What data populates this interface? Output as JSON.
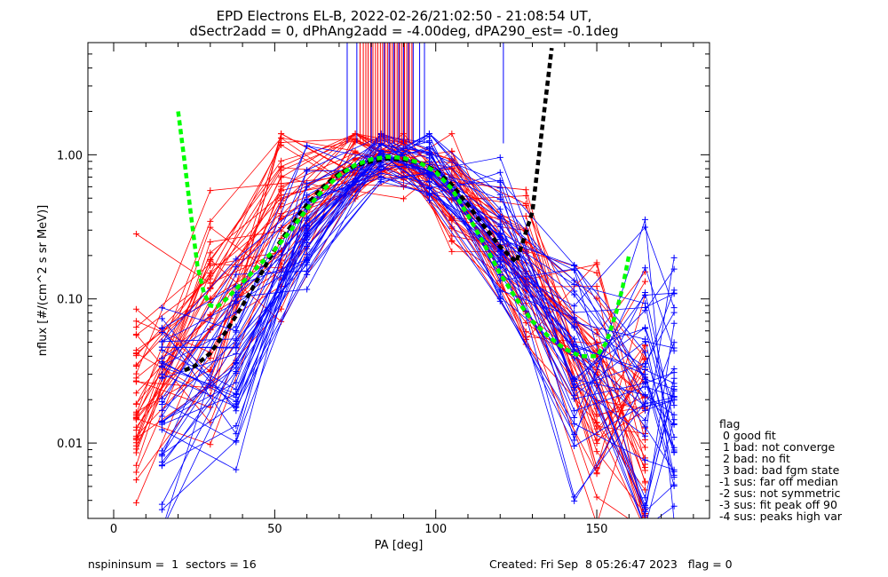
{
  "chart_data": {
    "type": "line",
    "title_line1": "EPD Electrons EL-B, 2022-02-26/21:02:50 - 21:08:54 UT,",
    "title_line2": "dSectr2add = 0, dPhAng2add = -4.00deg, dPA290_est=  -0.1deg",
    "xlabel": "PA [deg]",
    "ylabel": "nflux [#/(cm^2 s sr MeV)]",
    "xlim": [
      -8,
      185
    ],
    "ylim_log": [
      0.003,
      6.0
    ],
    "yscale": "log",
    "x_ticks": [
      0,
      50,
      100,
      150
    ],
    "x_tick_labels": [
      "0",
      "50",
      "100",
      "150"
    ],
    "y_ticks": [
      0.01,
      0.1,
      1.0
    ],
    "y_tick_labels": [
      "0.01",
      "0.10",
      "1.00"
    ],
    "colors": {
      "red": "#ff0000",
      "blue": "#0000ff",
      "black_fit": "#000000",
      "green_fit": "#00ff00"
    },
    "x_sample_pa": [
      7,
      15,
      30,
      38,
      52,
      60,
      75,
      83,
      90,
      98,
      105,
      120,
      128,
      143,
      150,
      165,
      174
    ],
    "red_traces_count": 40,
    "blue_traces_count": 40,
    "red_profile": {
      "x": [
        7,
        30,
        52,
        75,
        90,
        105,
        128,
        150,
        165
      ],
      "median": [
        0.018,
        0.07,
        0.4,
        0.85,
        0.9,
        0.62,
        0.17,
        0.025,
        0.012
      ]
    },
    "blue_profile": {
      "x": [
        15,
        38,
        60,
        83,
        98,
        120,
        143,
        165,
        174
      ],
      "median": [
        0.02,
        0.035,
        0.35,
        0.95,
        0.8,
        0.25,
        0.04,
        0.02,
        0.015
      ]
    },
    "black_fit": {
      "x": [
        22,
        25,
        30,
        35,
        40,
        45,
        50,
        55,
        60,
        65,
        70,
        75,
        80,
        85,
        90,
        95,
        100,
        105,
        110,
        115,
        120,
        125,
        130,
        133,
        136
      ],
      "y": [
        0.032,
        0.034,
        0.042,
        0.06,
        0.09,
        0.14,
        0.22,
        0.32,
        0.45,
        0.6,
        0.74,
        0.84,
        0.9,
        0.94,
        0.93,
        0.88,
        0.78,
        0.62,
        0.45,
        0.32,
        0.23,
        0.18,
        0.4,
        1.5,
        5.5
      ]
    },
    "green_fit": {
      "x": [
        20,
        22,
        24,
        26,
        28,
        30,
        32,
        35,
        40,
        45,
        50,
        55,
        60,
        65,
        70,
        75,
        80,
        85,
        90,
        95,
        100,
        105,
        110,
        115,
        120,
        125,
        130,
        135,
        140,
        145,
        150,
        153,
        156,
        158,
        160
      ],
      "y": [
        2.0,
        0.9,
        0.38,
        0.17,
        0.11,
        0.09,
        0.088,
        0.1,
        0.13,
        0.17,
        0.22,
        0.3,
        0.42,
        0.57,
        0.72,
        0.85,
        0.93,
        0.97,
        0.95,
        0.88,
        0.76,
        0.58,
        0.38,
        0.24,
        0.15,
        0.1,
        0.07,
        0.055,
        0.045,
        0.04,
        0.04,
        0.05,
        0.08,
        0.12,
        0.2
      ]
    },
    "marker_lines": {
      "red_x": [
        76.5,
        77.5,
        78.3,
        79.0,
        79.8,
        80.5,
        81.3,
        82.0,
        82.8,
        83.5,
        84.3,
        85.0,
        85.8,
        86.5,
        87.3,
        88.0,
        88.8,
        89.5,
        90.3,
        91.0,
        91.8,
        92.6
      ],
      "blue_x": [
        72.5,
        75.5,
        80.0,
        84.0,
        85.5,
        87.0,
        88.5,
        90.0,
        91.5,
        93.0,
        95.0,
        96.5,
        121.0
      ],
      "y_bottom": 1.2
    },
    "legend": {
      "title": "flag",
      "entries": [
        " 0 good fit",
        " 1 bad: not converge",
        " 2 bad: no fit",
        " 3 bad: bad fgm state",
        "-1 sus: far off median",
        "-2 sus: not symmetric",
        "-3 sus: fit peak off 90",
        "-4 sus: peaks high var"
      ]
    },
    "footer": {
      "left": "nspininsum =  1  sectors = 16",
      "right": "Created: Fri Sep  8 05:26:47 2023   flag = 0"
    }
  }
}
